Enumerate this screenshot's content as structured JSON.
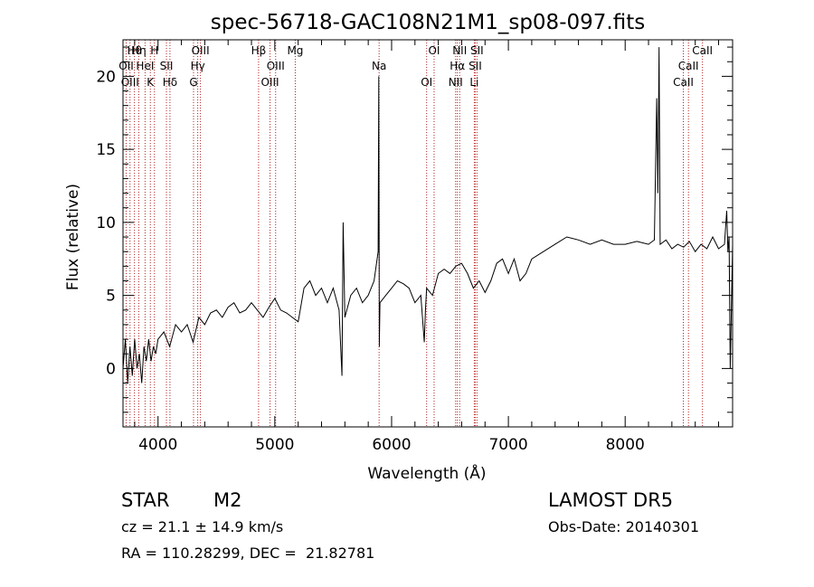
{
  "chart_data": {
    "type": "line",
    "title": "spec-56718-GAC108N21M1_sp08-097.fits",
    "xlabel": "Wavelength (Å)",
    "ylabel": "Flux (relative)",
    "xlim": [
      3700,
      8920
    ],
    "ylim": [
      -4,
      22.5
    ],
    "x_ticks": [
      4000,
      5000,
      6000,
      7000,
      8000
    ],
    "y_ticks": [
      0,
      5,
      10,
      15,
      20
    ],
    "grid": false,
    "line_color": "#000000",
    "marker_color": "#b22222",
    "spectrum": {
      "x": [
        3700,
        3720,
        3740,
        3760,
        3780,
        3800,
        3820,
        3840,
        3860,
        3880,
        3900,
        3920,
        3940,
        3960,
        3980,
        4000,
        4050,
        4100,
        4150,
        4200,
        4250,
        4300,
        4350,
        4400,
        4450,
        4500,
        4550,
        4600,
        4650,
        4700,
        4750,
        4800,
        4850,
        4900,
        4950,
        5000,
        5050,
        5100,
        5150,
        5200,
        5250,
        5300,
        5350,
        5400,
        5450,
        5500,
        5550,
        5575,
        5585,
        5600,
        5650,
        5700,
        5750,
        5800,
        5850,
        5885,
        5890,
        5895,
        5900,
        5950,
        6000,
        6050,
        6100,
        6150,
        6200,
        6250,
        6280,
        6290,
        6300,
        6350,
        6400,
        6450,
        6500,
        6550,
        6600,
        6650,
        6700,
        6750,
        6800,
        6850,
        6900,
        6950,
        7000,
        7050,
        7100,
        7150,
        7200,
        7300,
        7400,
        7500,
        7600,
        7700,
        7800,
        7900,
        8000,
        8100,
        8150,
        8200,
        8250,
        8270,
        8280,
        8290,
        8300,
        8350,
        8400,
        8450,
        8500,
        8550,
        8600,
        8650,
        8700,
        8750,
        8800,
        8850,
        8870,
        8880,
        8890,
        8900,
        8920
      ],
      "y": [
        0,
        2,
        -1,
        1.5,
        -0.5,
        2,
        0,
        1,
        -1,
        1.5,
        0.5,
        2,
        0.5,
        1.5,
        1,
        2,
        2.5,
        1.5,
        3,
        2.5,
        3,
        1.8,
        3.5,
        3,
        3.8,
        4,
        3.5,
        4.2,
        4.5,
        3.8,
        4,
        4.5,
        4,
        3.5,
        4.2,
        4.8,
        4,
        3.8,
        3.5,
        3.2,
        5.5,
        6,
        5,
        5.5,
        4.5,
        5.5,
        4,
        -0.5,
        10,
        3.5,
        5,
        5.5,
        4.5,
        5,
        6,
        8,
        20,
        1.5,
        4.5,
        5,
        5.5,
        6,
        5.8,
        5.5,
        4.5,
        5,
        1.8,
        4,
        5.5,
        5,
        6.5,
        6.8,
        6.5,
        7,
        7.2,
        6.5,
        5.5,
        6,
        5.2,
        6,
        7.2,
        7.5,
        6.5,
        7.5,
        6,
        6.5,
        7.5,
        8,
        8.5,
        9,
        8.8,
        8.5,
        8.8,
        8.5,
        8.5,
        8.7,
        8.6,
        8.5,
        8.8,
        18.5,
        12,
        22,
        8.5,
        8.8,
        8.2,
        8.5,
        8.3,
        8.7,
        8,
        8.5,
        8.2,
        9,
        8.2,
        8.5,
        10.8,
        8,
        9,
        0,
        8.5
      ]
    },
    "line_markers": [
      {
        "label": "Hθ",
        "x": 3798
      },
      {
        "label": "OII",
        "x": 3727
      },
      {
        "label": "OIII",
        "x": 3760
      },
      {
        "label": "Hη",
        "x": 3835
      },
      {
        "label": "HeI",
        "x": 3889
      },
      {
        "label": "K",
        "x": 3934
      },
      {
        "label": "H",
        "x": 3969
      },
      {
        "label": "SII",
        "x": 4072
      },
      {
        "label": "Hδ",
        "x": 4102
      },
      {
        "label": "OIII",
        "x": 4363
      },
      {
        "label": "Hγ",
        "x": 4340
      },
      {
        "label": "G",
        "x": 4304
      },
      {
        "label": "Hβ",
        "x": 4861
      },
      {
        "label": "OIII",
        "x": 5007
      },
      {
        "label": "OIII",
        "x": 4959
      },
      {
        "label": "Mg",
        "x": 5175
      },
      {
        "label": "Na",
        "x": 5893
      },
      {
        "label": "OI",
        "x": 6300
      },
      {
        "label": "OI",
        "x": 6364
      },
      {
        "label": "Hα",
        "x": 6563
      },
      {
        "label": "NII",
        "x": 6548
      },
      {
        "label": "NII",
        "x": 6583
      },
      {
        "label": "SII",
        "x": 6716
      },
      {
        "label": "Li",
        "x": 6708
      },
      {
        "label": "SII",
        "x": 6731
      },
      {
        "label": "CaII",
        "x": 8542
      },
      {
        "label": "CaII",
        "x": 8498
      },
      {
        "label": "CaII",
        "x": 8662
      }
    ]
  },
  "info": {
    "class_label": "STAR",
    "subclass_label": "M2",
    "survey_label": "LAMOST DR5",
    "cz_label": "cz = 21.1 ± 14.9 km/s",
    "obs_date_label": "Obs-Date: 20140301",
    "coords_label": "RA = 110.28299, DEC =  21.82781"
  }
}
